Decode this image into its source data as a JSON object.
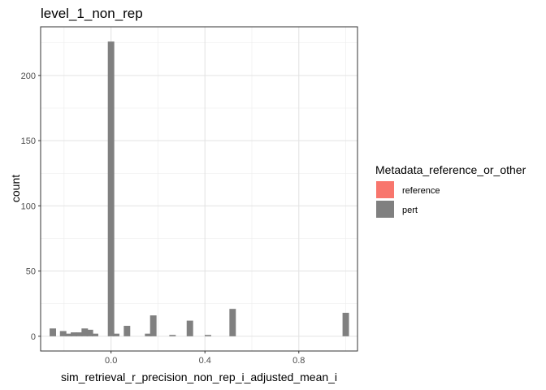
{
  "chart_data": {
    "type": "bar",
    "subtype": "histogram",
    "title": "level_1_non_rep",
    "xlabel": "sim_retrieval_r_precision_non_rep_i_adjusted_mean_i",
    "ylabel": "count",
    "xlim": [
      -0.3,
      1.05
    ],
    "ylim": [
      -11.3,
      237.3
    ],
    "x_ticks": [
      0.0,
      0.4,
      0.8
    ],
    "x_tick_labels": [
      "0.0",
      "0.4",
      "0.8"
    ],
    "y_ticks": [
      0,
      50,
      100,
      150,
      200
    ],
    "y_tick_labels": [
      "0",
      "50",
      "100",
      "150",
      "200"
    ],
    "grid": true,
    "bin_width": 0.0275,
    "legend": {
      "title": "Metadata_reference_or_other",
      "position": "right",
      "entries": [
        {
          "label": "reference",
          "color": "#F8766D"
        },
        {
          "label": "pert",
          "color": "#808080"
        }
      ]
    },
    "series": [
      {
        "name": "pert",
        "color": "#808080",
        "bins": [
          {
            "x": -0.248,
            "count": 6
          },
          {
            "x": -0.204,
            "count": 4
          },
          {
            "x": -0.18,
            "count": 2
          },
          {
            "x": -0.158,
            "count": 3
          },
          {
            "x": -0.136,
            "count": 3
          },
          {
            "x": -0.112,
            "count": 6
          },
          {
            "x": -0.09,
            "count": 5
          },
          {
            "x": -0.068,
            "count": 2
          },
          {
            "x": 0.0,
            "count": 226
          },
          {
            "x": 0.022,
            "count": 2
          },
          {
            "x": 0.068,
            "count": 8
          },
          {
            "x": 0.158,
            "count": 2
          },
          {
            "x": 0.18,
            "count": 16
          },
          {
            "x": 0.262,
            "count": 1
          },
          {
            "x": 0.336,
            "count": 12
          },
          {
            "x": 0.413,
            "count": 1
          },
          {
            "x": 0.518,
            "count": 21
          },
          {
            "x": 1.0,
            "count": 18
          }
        ]
      },
      {
        "name": "reference",
        "color": "#F8766D",
        "bins": []
      }
    ]
  }
}
